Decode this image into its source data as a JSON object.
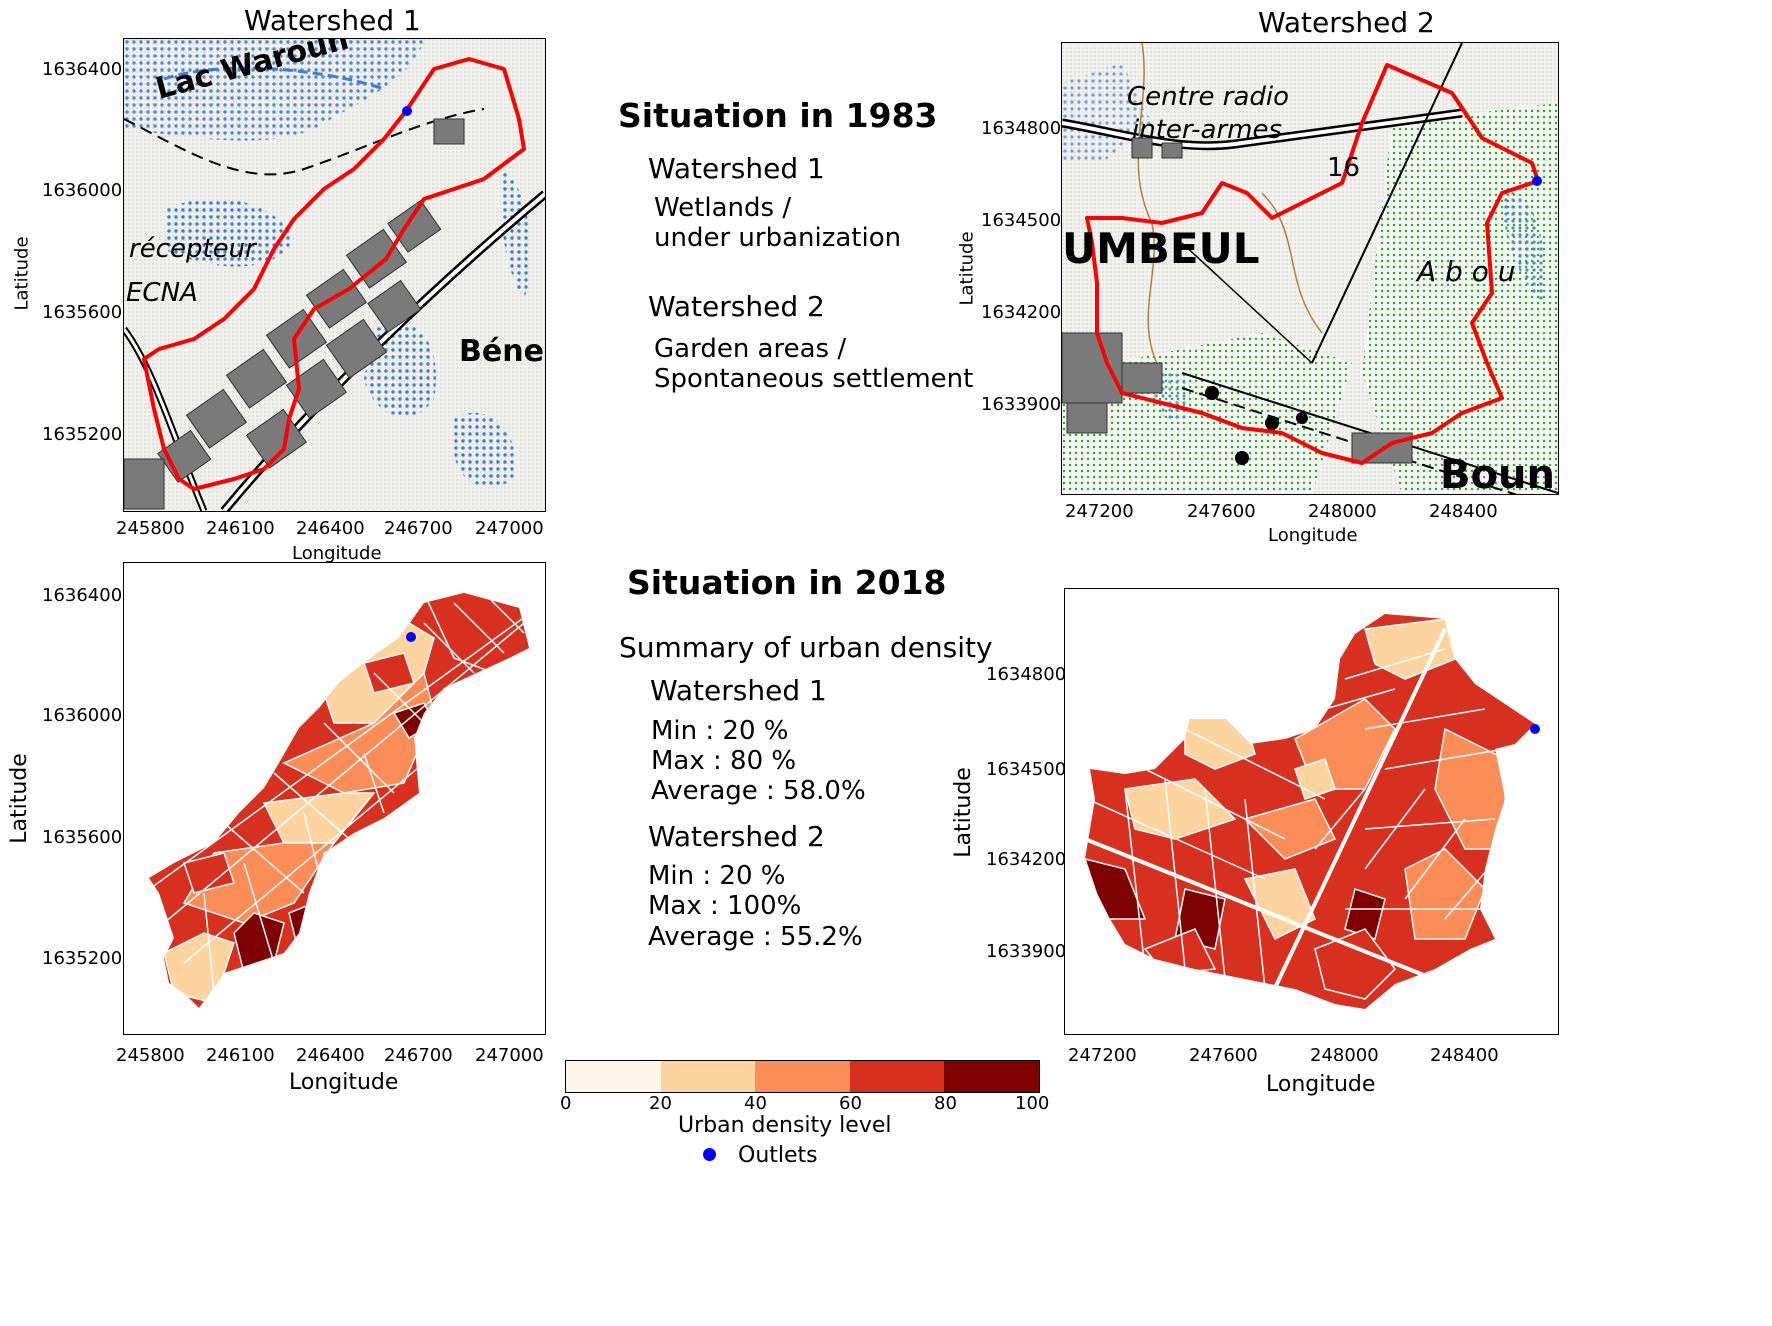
{
  "titles": {
    "watershed1": "Watershed 1",
    "watershed2": "Watershed 2"
  },
  "middle_1983": {
    "heading": "Situation in 1983",
    "ws1_label": "Watershed 1",
    "ws1_line1": "Wetlands /",
    "ws1_line2": "under urbanization",
    "ws2_label": "Watershed 2",
    "ws2_line1": "Garden areas /",
    "ws2_line2": "Spontaneous settlement"
  },
  "middle_2018": {
    "heading": "Situation in 2018",
    "summary": "Summary of urban density",
    "ws1_label": "Watershed 1",
    "ws1_min": "Min :  20 %",
    "ws1_max": "Max : 80 %",
    "ws1_avg": "Average : 58.0%",
    "ws2_label": "Watershed 2",
    "ws2_min": "Min :  20 %",
    "ws2_max": "Max : 100%",
    "ws2_avg": "Average :  55.2%"
  },
  "map_labels_1983_ws1": {
    "lake": "Lac Waroun",
    "recepteur": "récepteur",
    "ecna": "ECNA",
    "bene": "Béne"
  },
  "map_labels_1983_ws2": {
    "centre": "Centre radio",
    "interarmes": "inter-armes",
    "spot": "16",
    "umbeul": "UMBEUL",
    "abou": "A  b  o  u",
    "boun": "Boun"
  },
  "axes": {
    "latitude": "Latitude",
    "longitude": "Longitude",
    "ws1_x_ticks": [
      "245800",
      "246100",
      "246400",
      "246700",
      "247000"
    ],
    "ws1_y_ticks": [
      "1636400",
      "1636000",
      "1635600",
      "1635200"
    ],
    "ws2_x_ticks": [
      "247200",
      "247600",
      "248000",
      "248400"
    ],
    "ws2_y_ticks_1983": [
      "1634800",
      "1634500",
      "1634200",
      "1633900"
    ],
    "ws2_y_ticks_2018": [
      "1634800",
      "1634500",
      "1634200",
      "1633900"
    ]
  },
  "colorbar": {
    "title": "Urban density level",
    "ticks": [
      "0",
      "20",
      "40",
      "60",
      "80",
      "100"
    ],
    "classes": [
      {
        "from": 0,
        "to": 20,
        "color": "#fff5eb"
      },
      {
        "from": 20,
        "to": 40,
        "color": "#fdd49e"
      },
      {
        "from": 40,
        "to": 60,
        "color": "#fc8d59"
      },
      {
        "from": 60,
        "to": 80,
        "color": "#d7301f"
      },
      {
        "from": 80,
        "to": 100,
        "color": "#7f0000"
      }
    ]
  },
  "legend": {
    "outlets_label": "Outlets",
    "outlet_color": "#0000ff"
  },
  "colors": {
    "boundary": "#ff0000",
    "water": "#3a7fd5",
    "urban": "#7a7a7a",
    "vegetation": "#22aa22"
  }
}
